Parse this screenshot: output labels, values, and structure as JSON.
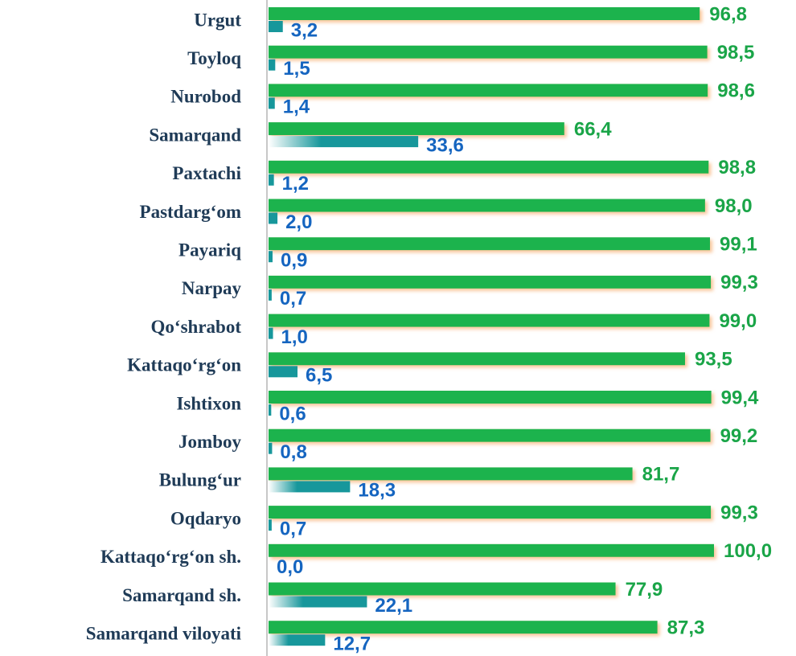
{
  "chart_data": {
    "type": "bar",
    "orientation": "horizontal",
    "categories": [
      "Urgut",
      "Toyloq",
      "Nurobod",
      "Samarqand",
      "Paxtachi",
      "Pastdarg‘om",
      "Payariq",
      "Narpay",
      "Qo‘shrabot",
      "Kattaqo‘rg‘on",
      "Ishtixon",
      "Jomboy",
      "Bulung‘ur",
      "Oqdaryo",
      "Kattaqo‘rg‘on  sh.",
      "Samarqand sh.",
      "Samarqand viloyati"
    ],
    "xlim": [
      0,
      100
    ],
    "series": [
      {
        "color": "#1db34e",
        "label_color": "#1aa548",
        "values": [
          96.8,
          98.5,
          98.6,
          66.4,
          98.8,
          98.0,
          99.1,
          99.3,
          99.0,
          93.5,
          99.4,
          99.2,
          81.7,
          99.3,
          100.0,
          77.9,
          87.3
        ],
        "value_labels": [
          "96,8",
          "98,5",
          "98,6",
          "66,4",
          "98,8",
          "98,0",
          "99,1",
          "99,3",
          "99,0",
          "93,5",
          "99,4",
          "99,2",
          "81,7",
          "99,3",
          "100,0",
          "77,9",
          "87,3"
        ]
      },
      {
        "color": "#17979b",
        "label_color": "#1565c0",
        "values": [
          3.2,
          1.5,
          1.4,
          33.6,
          1.2,
          2.0,
          0.9,
          0.7,
          1.0,
          6.5,
          0.6,
          0.8,
          18.3,
          0.7,
          0.0,
          22.1,
          12.7
        ],
        "value_labels": [
          "3,2",
          "1,5",
          "1,4",
          "33,6",
          "1,2",
          "2,0",
          "0,9",
          "0,7",
          "1,0",
          "6,5",
          "0,6",
          "0,8",
          "18,3",
          "0,7",
          "0,0",
          "22,1",
          "12,7"
        ]
      }
    ]
  }
}
